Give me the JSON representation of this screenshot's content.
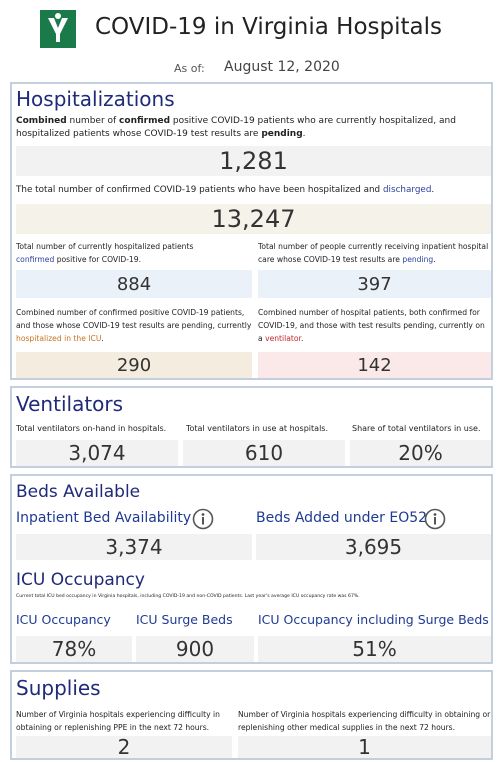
{
  "header": {
    "title": "COVID-19 in Virginia Hospitals",
    "as_of_label": "As of:",
    "as_of_date": "August 12, 2020"
  },
  "hospitalizations": {
    "title": "Hospitalizations",
    "current": {
      "description": [
        "Combined",
        " number of ",
        "confirmed",
        " positive COVID-19 patients who are currently hospitalized, and hospitalized patients whose COVID-19 test results are ",
        "pending",
        "."
      ],
      "value": "1,281"
    },
    "total": {
      "description": [
        "The total number of confirmed COVID-19 patients who have been hospitalized and ",
        "discharged",
        "."
      ],
      "value": "13,247"
    },
    "confirmed": {
      "description": [
        "Total number of currently hospitalized patients ",
        "confirmed",
        " positive for COVID-19."
      ],
      "value": "884"
    },
    "pending": {
      "description": [
        "Total number of people currently receiving inpatient hospital care whose COVID-19 test results are ",
        "pending",
        "."
      ],
      "value": "397"
    },
    "icu": {
      "description": [
        "Combined number of confirmed positive COVID-19 patients, and those whose COVID-19 test results are pending, currently ",
        "hospitalized in the ICU",
        "."
      ],
      "value": "290"
    },
    "ventilator": {
      "description": [
        "Combined number of hospital patients, both confirmed for COVID-19, and those with test results pending, currently on a ",
        "ventilator",
        "."
      ],
      "value": "142"
    }
  },
  "ventilators": {
    "title": "Ventilators",
    "items": [
      {
        "label": "Total ventilators on-hand in hospitals.",
        "value": "3,074"
      },
      {
        "label": "Total ventilators in use at hospitals.",
        "value": "610"
      },
      {
        "label": "Share of total ventilators in use.",
        "value": "20%"
      }
    ]
  },
  "beds": {
    "title": "Beds Available",
    "items": [
      {
        "label": "Inpatient Bed Availability",
        "value": "3,374"
      },
      {
        "label": "Beds Added under EO52",
        "value": "3,695"
      }
    ],
    "icu": {
      "title": "ICU Occupancy",
      "note": "Current total ICU bed occupancy in Virginia hospitals, including COVID-19 and non-COVID patients. Last year's average ICU occupancy rate was 67%.",
      "items": [
        {
          "label": "ICU Occupancy",
          "value": "78%"
        },
        {
          "label": "ICU Surge Beds",
          "value": "900"
        },
        {
          "label": "ICU Occupancy including Surge Beds",
          "value": "51%"
        }
      ]
    }
  },
  "supplies": {
    "title": "Supplies",
    "items": [
      {
        "label": "Number of Virginia hospitals experiencing difficulty in obtaining or replenishing PPE in the next 72 hours.",
        "value": "2"
      },
      {
        "label": "Number of Virginia hospitals experiencing difficulty in obtaining or replenishing other medical supplies in the next 72 hours.",
        "value": "1"
      }
    ]
  }
}
